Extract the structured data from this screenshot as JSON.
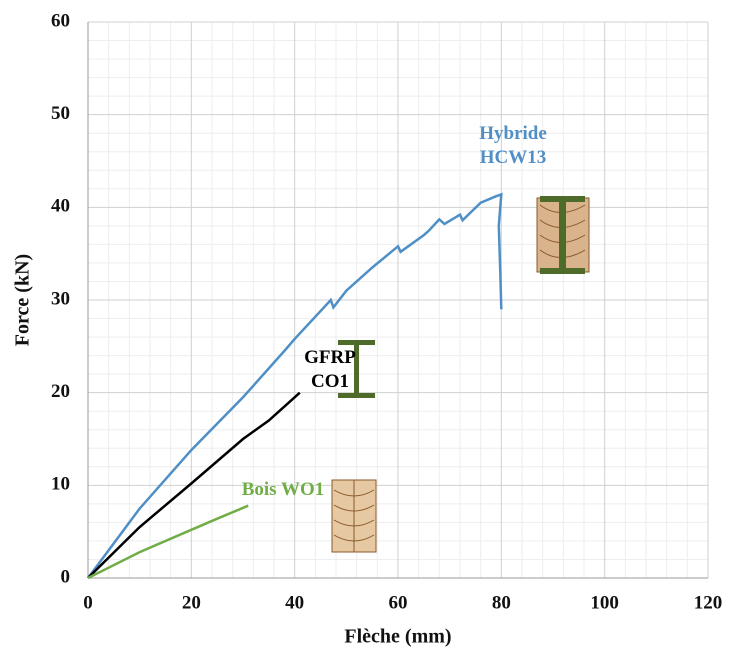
{
  "chart_data": {
    "type": "line",
    "x_label": "Flèche (mm)",
    "y_label": "Force (kN)",
    "xlim": [
      0,
      120
    ],
    "xticks": [
      0,
      20,
      40,
      60,
      80,
      100,
      120
    ],
    "ylim": [
      0,
      60
    ],
    "yticks": [
      0,
      10,
      20,
      30,
      40,
      50,
      60
    ],
    "grid": true,
    "minor_grid_divisions": 5,
    "series": [
      {
        "name": "Hybride HCW13",
        "color": "#4f8fc6",
        "x": [
          0,
          10,
          20,
          30,
          38,
          40,
          47,
          47.5,
          50,
          55,
          60,
          60.5,
          65,
          66,
          68,
          69,
          72,
          72.5,
          76,
          79,
          80,
          79.5,
          79.8,
          80
        ],
        "values": [
          0,
          7.5,
          13.8,
          19.5,
          24.5,
          25.8,
          30,
          29.2,
          31,
          33.5,
          35.8,
          35.2,
          37,
          37.5,
          38.7,
          38.2,
          39.2,
          38.6,
          40.5,
          41.2,
          41.4,
          38,
          33,
          29
        ]
      },
      {
        "name": "GFRP CO1",
        "color": "#000000",
        "x": [
          0,
          10,
          20,
          30,
          35,
          41
        ],
        "values": [
          0,
          5.5,
          10.2,
          15,
          17,
          20
        ]
      },
      {
        "name": "Bois WO1",
        "color": "#70ad47",
        "x": [
          0,
          10,
          20,
          25,
          31
        ],
        "values": [
          0,
          2.8,
          5.2,
          6.4,
          7.8
        ]
      }
    ]
  }
}
